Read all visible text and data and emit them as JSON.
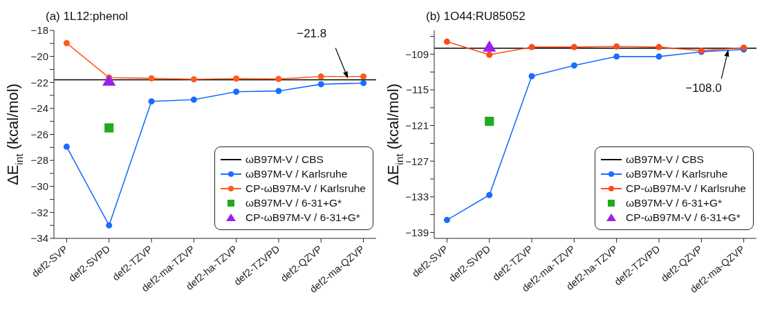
{
  "chart_data": [
    {
      "type": "line",
      "title": "(a) 1L12:phenol",
      "ylabel": "ΔE$_{int}$ (kcal/mol)",
      "categories": [
        "def2-SVP",
        "def2-SVPD",
        "def2-TZVP",
        "def2-ma-TZVP",
        "def2-ha-TZVP",
        "def2-TZVPD",
        "def2-QZVP",
        "def2-ma-QZVP"
      ],
      "series": [
        {
          "name": "ωB97M-V / Karlsruhe",
          "type": "line",
          "marker": "circle",
          "color": "#1a6cff",
          "values": [
            -26.95,
            -33.0,
            -23.46,
            -23.33,
            -22.72,
            -22.66,
            -22.14,
            -22.05
          ]
        },
        {
          "name": "CP-ωB97M-V / Karlsruhe",
          "type": "line",
          "marker": "circle",
          "color": "#ff5a1f",
          "values": [
            -18.98,
            -21.63,
            -21.69,
            -21.76,
            -21.71,
            -21.74,
            -21.55,
            -21.55
          ]
        },
        {
          "name": "ωB97M-V / 6-31+G*",
          "type": "scatter",
          "marker": "square",
          "color": "#1faa1f",
          "x": [
            "def2-SVPD"
          ],
          "values": [
            -25.5
          ]
        },
        {
          "name": "CP-ωB97M-V / 6-31+G*",
          "type": "scatter",
          "marker": "triangle",
          "color": "#9b1ff0",
          "x": [
            "def2-SVPD"
          ],
          "values": [
            -21.9
          ]
        }
      ],
      "ref_lines": [
        {
          "axis": "y",
          "value": -21.8,
          "label": "ωB97M-V / CBS",
          "color": "#000000"
        }
      ],
      "annotations": [
        "−21.8"
      ],
      "ylim": [
        -34,
        -18
      ],
      "yticks": [
        -34,
        {
          "value": -33,
          "label": null
        },
        -32,
        {
          "value": -31,
          "label": null
        },
        -30,
        {
          "value": -29,
          "label": null
        },
        -28,
        {
          "value": -27,
          "label": null
        },
        -26,
        {
          "value": -25,
          "label": null
        },
        -24,
        {
          "value": -23,
          "label": null
        },
        -22,
        {
          "value": -21,
          "label": null
        },
        -20,
        {
          "value": -19,
          "label": null
        },
        -18
      ],
      "grid": false,
      "legend": "bottom right"
    },
    {
      "type": "line",
      "title": "(b) 1O44:RU85052",
      "ylabel": "ΔE$_{int}$ (kcal/mol)",
      "categories": [
        "def2-SVP",
        "def2-SVPD",
        "def2-TZVP",
        "def2-ma-TZVP",
        "def2-ha-TZVP",
        "def2-TZVPD",
        "def2-QZVP",
        "def2-ma-QZVP"
      ],
      "series": [
        {
          "name": "ωB97M-V / Karlsruhe",
          "type": "line",
          "marker": "circle",
          "color": "#1a6cff",
          "values": [
            -136.9,
            -132.7,
            -112.7,
            -110.9,
            -109.4,
            -109.4,
            -108.6,
            -108.2
          ]
        },
        {
          "name": "CP-ωB97M-V / Karlsruhe",
          "type": "line",
          "marker": "circle",
          "color": "#ff4a1a",
          "values": [
            -106.9,
            -109.1,
            -107.8,
            -107.8,
            -107.7,
            -107.8,
            -108.4,
            -107.9
          ]
        },
        {
          "name": "ωB97M-V / 6-31+G*",
          "type": "scatter",
          "marker": "square",
          "color": "#1faa1f",
          "x": [
            "def2-SVPD"
          ],
          "values": [
            -120.3
          ]
        },
        {
          "name": "CP-ωB97M-V / 6-31+G*",
          "type": "scatter",
          "marker": "triangle",
          "color": "#9b1ff0",
          "x": [
            "def2-SVPD"
          ],
          "values": [
            -107.8
          ]
        }
      ],
      "ref_lines": [
        {
          "axis": "y",
          "value": -108.0,
          "label": "ωB97M-V / CBS",
          "color": "#000000"
        }
      ],
      "annotations": [
        "−108.0"
      ],
      "ylim": [
        -140,
        -105
      ],
      "yticks": [
        -139,
        {
          "value": -136,
          "label": null
        },
        -133,
        {
          "value": -130,
          "label": null
        },
        -127,
        {
          "value": -124,
          "label": null
        },
        -121,
        {
          "value": -118,
          "label": null
        },
        -115,
        {
          "value": -112,
          "label": null
        },
        -109,
        {
          "value": -106,
          "label": null
        }
      ],
      "grid": false,
      "legend": "bottom right"
    }
  ]
}
